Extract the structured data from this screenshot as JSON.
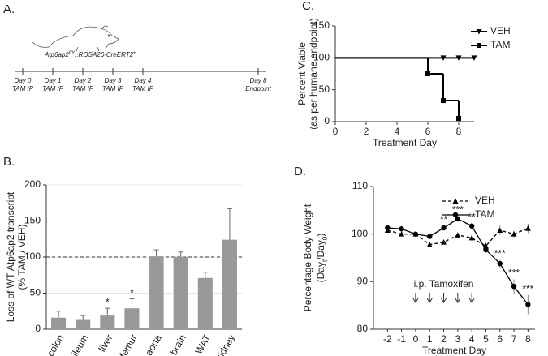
{
  "panel_a": {
    "label": "A.",
    "strain": {
      "base": "Atp6ap2",
      "sup1": "f/Y",
      "mid": "::ROSA26-CreERT2",
      "sup2": "+"
    },
    "timeline": [
      {
        "day": "Day 0",
        "event": "TAM IP"
      },
      {
        "day": "Day 1",
        "event": "TAM IP"
      },
      {
        "day": "Day 2",
        "event": "TAM IP"
      },
      {
        "day": "Day 3",
        "event": "TAM IP"
      },
      {
        "day": "Day 4",
        "event": "TAM IP"
      },
      {
        "day": "Day 8",
        "event": "Endpoint"
      }
    ]
  },
  "chart_data": [
    {
      "type": "bar",
      "panel": "B.",
      "ylabel": "Loss of WT Atp6ap2 transcript",
      "ylabel_note": "(% TAM / VEH)",
      "categories": [
        "colon",
        "ileum",
        "liver",
        "femur",
        "aorta",
        "brain",
        "WAT",
        "kidney"
      ],
      "values": [
        16,
        14,
        19,
        29,
        101,
        100,
        71,
        124
      ],
      "errors": [
        9,
        5,
        10,
        13,
        9,
        7,
        8,
        43
      ],
      "annotations": [
        null,
        null,
        "*",
        "*",
        null,
        null,
        null,
        null
      ],
      "color": "#999999",
      "ylim": [
        0,
        200
      ],
      "yticks": [
        0,
        50,
        100,
        150,
        200
      ],
      "grid": true,
      "reference_line": 100
    },
    {
      "type": "step",
      "panel": "C.",
      "ylabel": "Percent Viable",
      "ylabel_note": "(as per humane endpoint)",
      "xlabel": "Treatment Day",
      "xlim": [
        0,
        9
      ],
      "ylim": [
        0,
        150
      ],
      "xticks": [
        0,
        2,
        4,
        6,
        8
      ],
      "yticks": [
        0,
        50,
        100,
        150
      ],
      "series": [
        {
          "name": "VEH",
          "color": "#000000",
          "marker": "triangle-down",
          "x": [
            0,
            7,
            8,
            9
          ],
          "values": [
            100,
            100,
            100,
            100
          ]
        },
        {
          "name": "TAM",
          "color": "#000000",
          "marker": "square",
          "x": [
            0,
            6,
            7,
            8
          ],
          "values": [
            100,
            75,
            33,
            5
          ]
        }
      ]
    },
    {
      "type": "line",
      "panel": "D.",
      "ylabel": "Percentage Body Weight",
      "ylabel_note": [
        "(Day",
        "t",
        "/Day",
        "0",
        ")"
      ],
      "xlabel": "Treatment Day",
      "x": [
        -2,
        -1,
        0,
        1,
        2,
        3,
        4,
        5,
        6,
        7,
        8
      ],
      "xlim": [
        -3,
        8.5
      ],
      "ylim": [
        80,
        110
      ],
      "xticks": [
        -2,
        -1,
        0,
        1,
        2,
        3,
        4,
        5,
        6,
        7,
        8
      ],
      "yticks": [
        80,
        90,
        100,
        110
      ],
      "series": [
        {
          "name": "VEH",
          "color": "#000000",
          "marker": "triangle-up",
          "dashed": true,
          "values": [
            100.8,
            100,
            100,
            97.8,
            98.3,
            99.8,
            99.2,
            97.5,
            100.8,
            100,
            101.2
          ],
          "errors": [
            0.5,
            0.5,
            0.3,
            0.5,
            0.5,
            0.5,
            0.5,
            0.7,
            1,
            0.7,
            1
          ]
        },
        {
          "name": "TAM",
          "color": "#000000",
          "marker": "circle",
          "dashed": false,
          "values": [
            101.3,
            101.1,
            100,
            99.5,
            101.3,
            103.2,
            101.7,
            96.7,
            93.8,
            89,
            85.2
          ],
          "errors": [
            0.4,
            0.4,
            0.3,
            0.5,
            0.5,
            0.6,
            0.6,
            0.6,
            0.8,
            1.5,
            2
          ]
        }
      ],
      "annotations": [
        {
          "x": 2,
          "text": "**"
        },
        {
          "x": 3,
          "text": "***"
        },
        {
          "x": 4,
          "text": "**"
        },
        {
          "x": 6,
          "text": "***"
        },
        {
          "x": 7,
          "text": "***"
        },
        {
          "x": 8,
          "text": "***"
        }
      ],
      "treatment": {
        "label": "i.p. Tamoxifen",
        "days": [
          0,
          1,
          2,
          3,
          4
        ]
      }
    }
  ]
}
